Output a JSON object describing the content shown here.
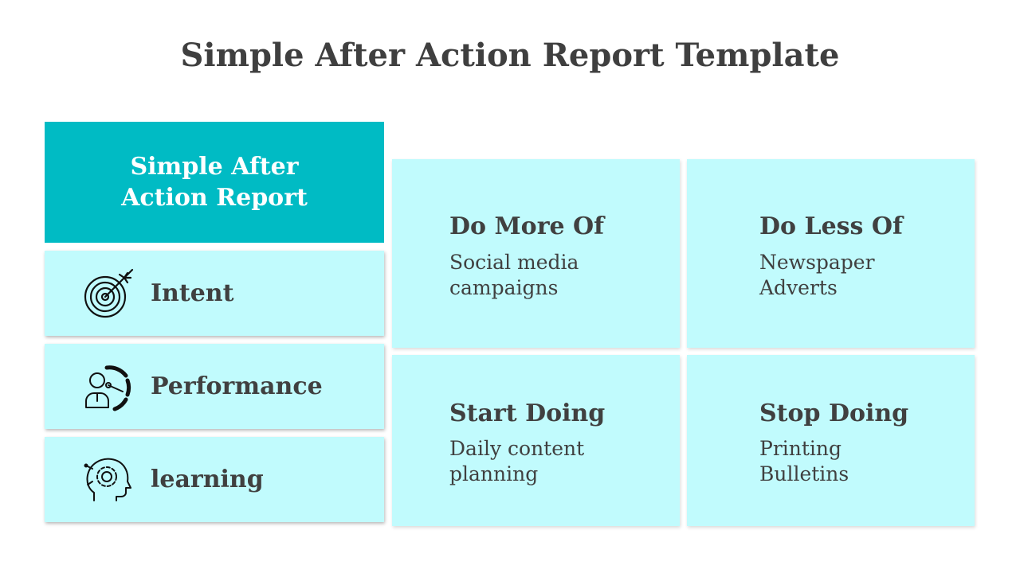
{
  "page": {
    "title": "Simple After Action Report Template"
  },
  "header": {
    "label": "Simple After Action Report"
  },
  "left_items": [
    {
      "label": "Intent",
      "icon": "target-arrow-icon"
    },
    {
      "label": "Performance",
      "icon": "performance-gauge-icon"
    },
    {
      "label": "learning",
      "icon": "head-gear-icon"
    }
  ],
  "cards": [
    {
      "title": "Do More Of",
      "text": "Social media campaigns"
    },
    {
      "title": "Do Less Of",
      "text": "Newspaper Adverts"
    },
    {
      "title": "Start Doing",
      "text": "Daily content planning"
    },
    {
      "title": "Stop Doing",
      "text": "Printing Bulletins"
    }
  ],
  "colors": {
    "accent": "#00bbc4",
    "panel": "#c1fbfd",
    "text": "#404040"
  }
}
